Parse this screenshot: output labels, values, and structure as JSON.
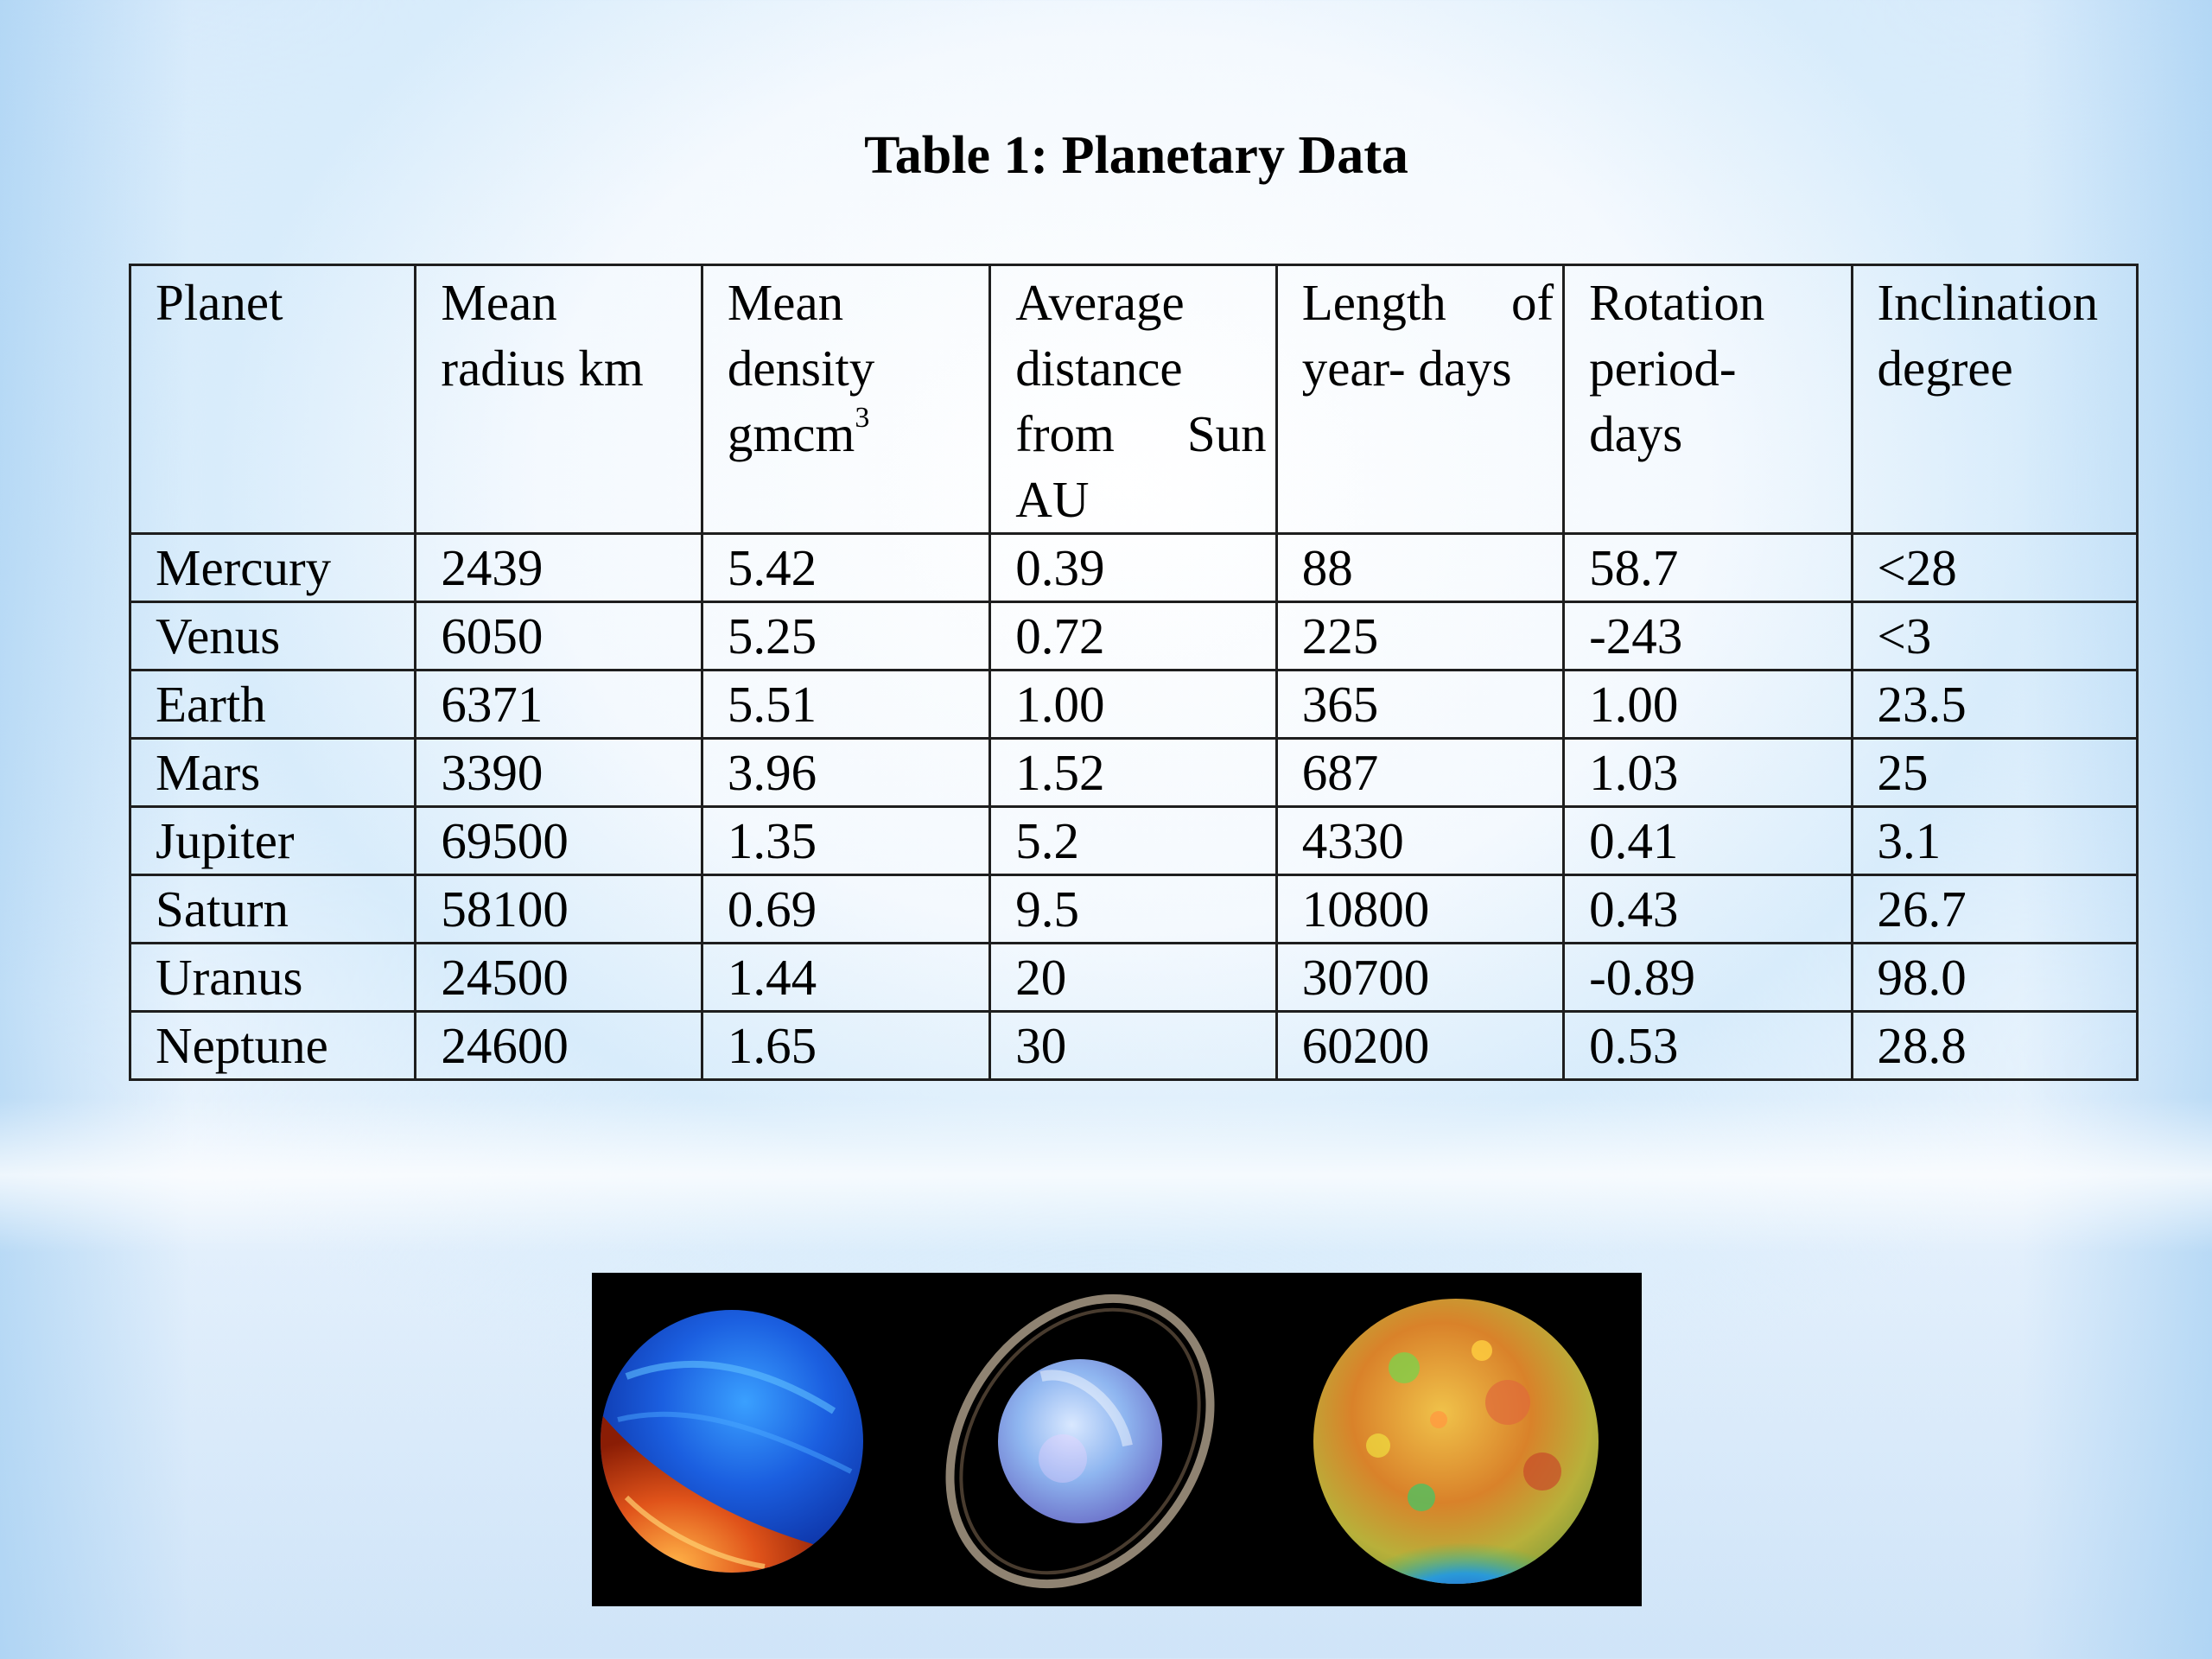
{
  "title": "Table 1: Planetary Data",
  "table": {
    "headers": {
      "planet": "Planet",
      "radius_line1": "Mean",
      "radius_line2": "radius km",
      "density_line1": "Mean",
      "density_line2": "density",
      "density_line3": "gmcm",
      "density_sup": "3",
      "distance_line1": "Average",
      "distance_line2": "distance",
      "distance_from": "from",
      "distance_sun": "Sun",
      "distance_line4": "AU",
      "year_length": "Length",
      "year_of": "of",
      "year_line2": "year- days",
      "rotation_line1": "Rotation",
      "rotation_line2": "period-",
      "rotation_line3": "days",
      "inclination_line1": "Inclination",
      "inclination_line2": "degree"
    },
    "rows": [
      [
        "Mercury",
        "2439",
        "5.42",
        "0.39",
        "88",
        "58.7",
        "<28"
      ],
      [
        "Venus",
        "6050",
        "5.25",
        "0.72",
        "225",
        "-243",
        "<3"
      ],
      [
        "Earth",
        "6371",
        "5.51",
        "1.00",
        "365",
        "1.00",
        "23.5"
      ],
      [
        "Mars",
        "3390",
        "3.96",
        "1.52",
        "687",
        "1.03",
        "25"
      ],
      [
        "Jupiter",
        "69500",
        "1.35",
        "5.2",
        "4330",
        "0.41",
        "3.1"
      ],
      [
        "Saturn",
        "58100",
        "0.69",
        "9.5",
        "10800",
        "0.43",
        "26.7"
      ],
      [
        "Uranus",
        "24500",
        "1.44",
        "20",
        "30700",
        "-0.89",
        "98.0"
      ],
      [
        "Neptune",
        "24600",
        "1.65",
        "30",
        "60200",
        "0.53",
        "28.8"
      ]
    ]
  },
  "image": {
    "icons": [
      "venus-planet-icon",
      "uranus-ringed-planet-icon",
      "moon-topography-icon"
    ]
  },
  "colors": {
    "table_border": "#1e1e1e",
    "text": "#000000",
    "image_background": "#000000"
  }
}
